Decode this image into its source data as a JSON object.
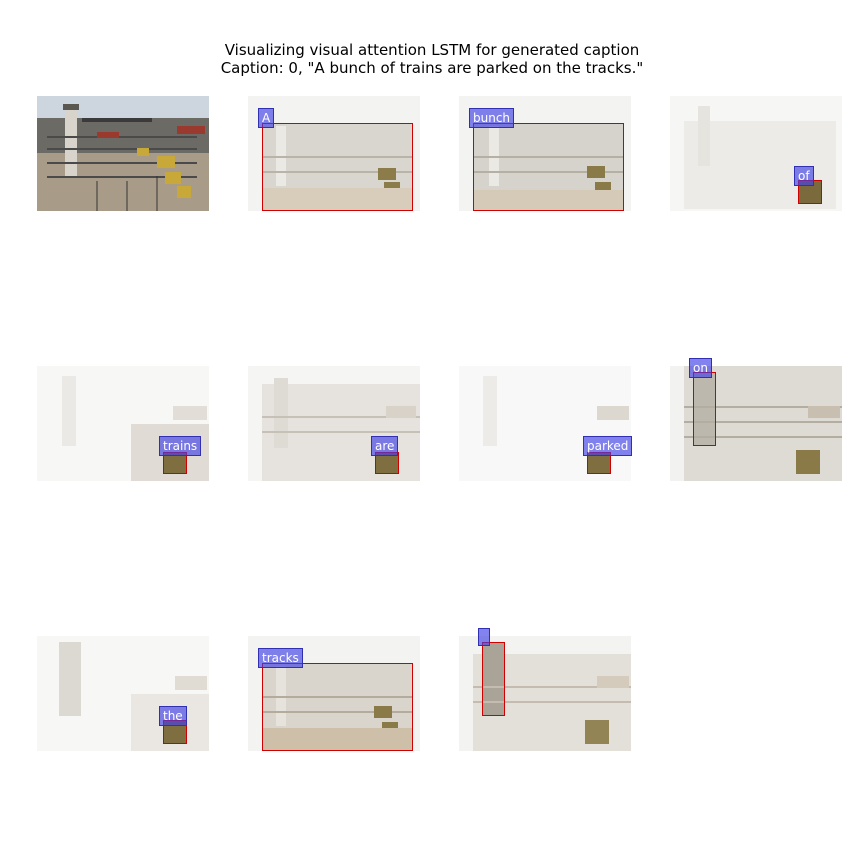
{
  "title": {
    "line1": "Visualizing visual attention LSTM for generated caption",
    "line2": "Caption: 0, \"A bunch of trains are parked on the tracks.\""
  },
  "panels": [
    {
      "word": ""
    },
    {
      "word": "A"
    },
    {
      "word": "bunch"
    },
    {
      "word": "of"
    },
    {
      "word": "trains"
    },
    {
      "word": "are"
    },
    {
      "word": "parked"
    },
    {
      "word": "on"
    },
    {
      "word": "the"
    },
    {
      "word": "tracks"
    },
    {
      "word": ""
    }
  ]
}
